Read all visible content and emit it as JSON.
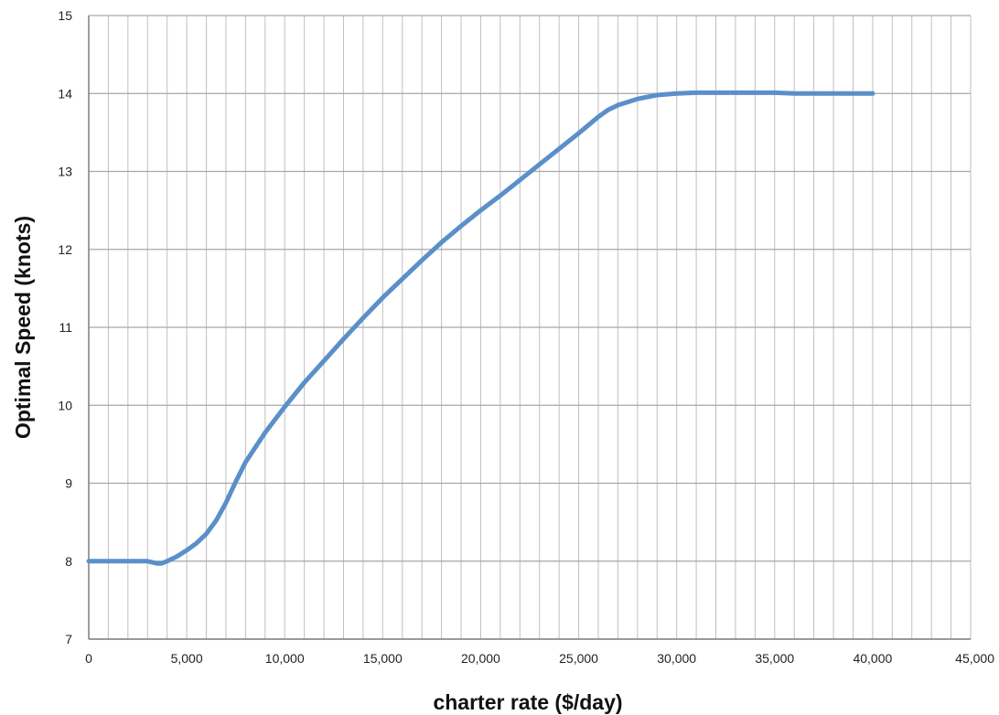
{
  "chart_data": {
    "type": "line",
    "xlabel": "charter rate   ($/day)",
    "ylabel": "Optimal Speed   (knots)",
    "xlim": [
      0,
      45000
    ],
    "ylim": [
      7,
      15
    ],
    "x_ticks": [
      0,
      5000,
      10000,
      15000,
      20000,
      25000,
      30000,
      35000,
      40000,
      45000
    ],
    "x_tick_labels": [
      "0",
      "5,000",
      "10,000",
      "15,000",
      "20,000",
      "25,000",
      "30,000",
      "35,000",
      "40,000",
      "45,000"
    ],
    "y_ticks": [
      7,
      8,
      9,
      10,
      11,
      12,
      13,
      14,
      15
    ],
    "y_tick_labels": [
      "7",
      "8",
      "9",
      "10",
      "11",
      "12",
      "13",
      "14",
      "15"
    ],
    "x_minor_step": 1000,
    "grid": true,
    "legend": "none",
    "line_color": "#5b8fc9",
    "grid_color": "#bfbfbf",
    "series": [
      {
        "x": [
          0,
          1000,
          2000,
          3000,
          3500,
          3700,
          4000,
          4500,
          5000,
          5500,
          6000,
          6500,
          7000,
          7500,
          8000,
          9000,
          10000,
          11000,
          12000,
          13000,
          14000,
          15000,
          16000,
          17000,
          18000,
          19000,
          20000,
          21000,
          22000,
          23000,
          24000,
          25000,
          26000,
          26500,
          27000,
          28000,
          29000,
          30000,
          31000,
          32000,
          33000,
          34000,
          35000,
          36000,
          37000,
          38000,
          39000,
          40000
        ],
        "y": [
          8.0,
          8.0,
          8.0,
          8.0,
          7.97,
          7.97,
          8.0,
          8.06,
          8.14,
          8.23,
          8.35,
          8.52,
          8.75,
          9.02,
          9.27,
          9.65,
          9.98,
          10.29,
          10.57,
          10.85,
          11.12,
          11.38,
          11.62,
          11.86,
          12.09,
          12.3,
          12.5,
          12.69,
          12.89,
          13.09,
          13.29,
          13.49,
          13.7,
          13.79,
          13.85,
          13.93,
          13.98,
          14.0,
          14.01,
          14.01,
          14.01,
          14.01,
          14.01,
          14.0,
          14.0,
          14.0,
          14.0,
          14.0
        ]
      }
    ]
  }
}
